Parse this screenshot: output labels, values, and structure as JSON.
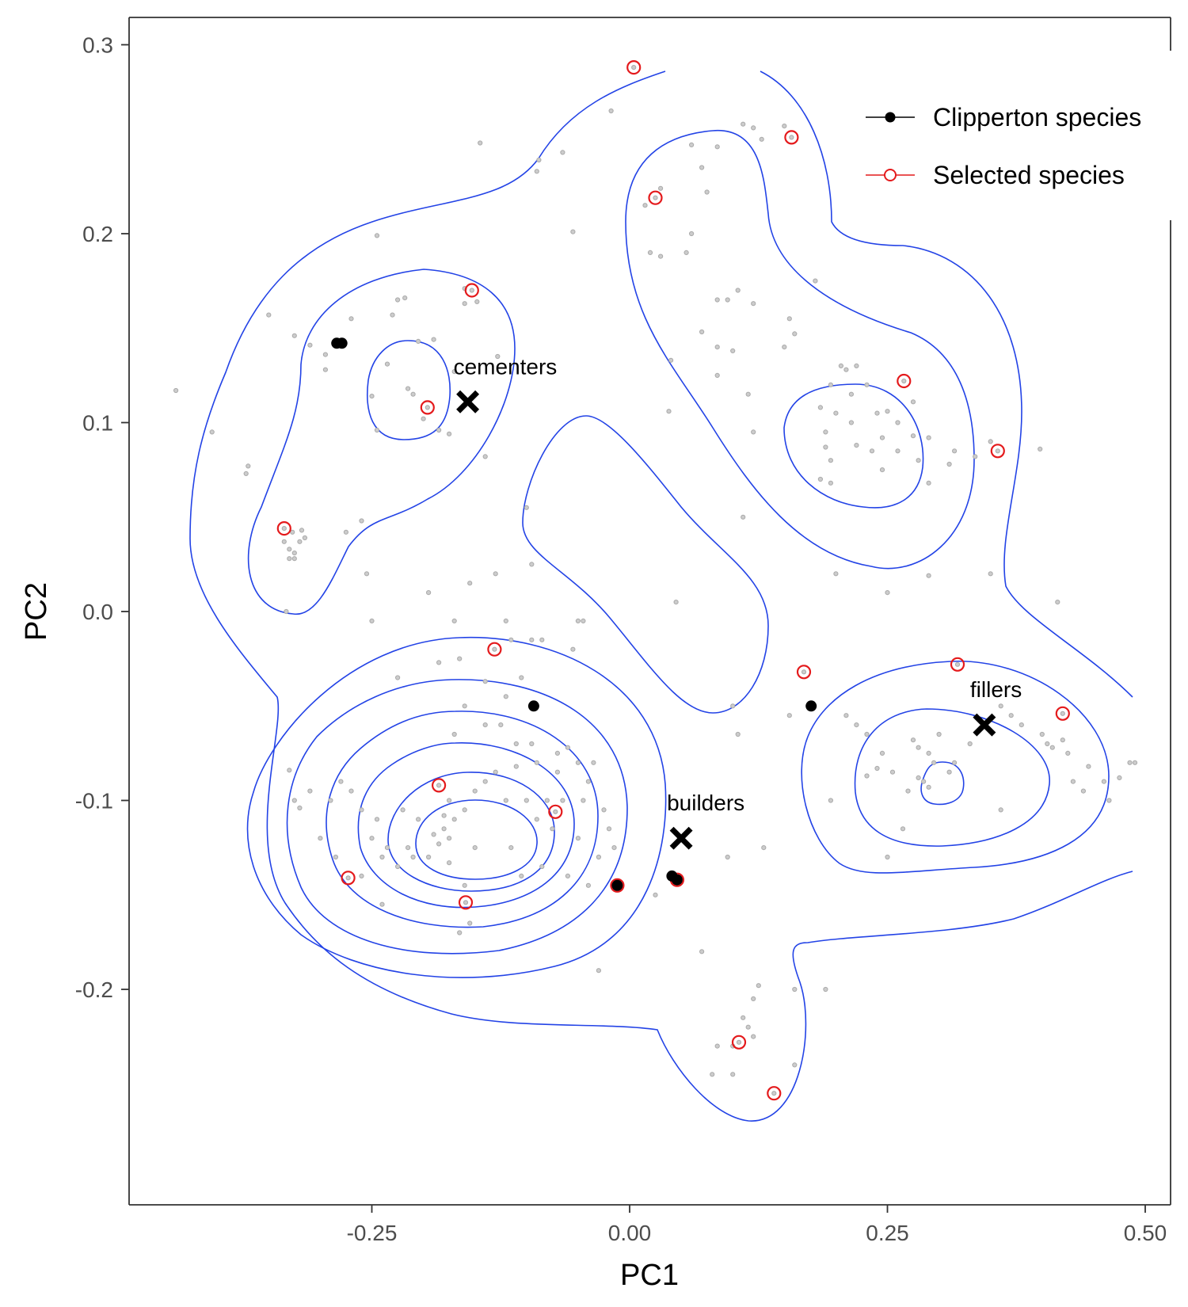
{
  "chart_data": {
    "type": "scatter",
    "title": "",
    "xlabel": "PC1",
    "ylabel": "PC2",
    "xlim": [
      -0.49,
      0.52
    ],
    "ylim": [
      -0.28,
      0.315
    ],
    "x_ticks": [
      {
        "value": -0.25,
        "label": "-0.25"
      },
      {
        "value": 0.0,
        "label": "0.00"
      },
      {
        "value": 0.25,
        "label": "0.25"
      },
      {
        "value": 0.5,
        "label": "0.50"
      }
    ],
    "y_ticks": [
      {
        "value": 0.3,
        "label": "0.3"
      },
      {
        "value": 0.2,
        "label": "0.2"
      },
      {
        "value": 0.1,
        "label": "0.1"
      },
      {
        "value": 0.0,
        "label": "0.0"
      },
      {
        "value": -0.1,
        "label": "-0.1"
      },
      {
        "value": -0.2,
        "label": "-0.2"
      }
    ],
    "grid": false,
    "legend_position": "top-right",
    "colors": {
      "background_points": "#aaaaaa",
      "clipperton": "#000000",
      "selected": "#e41a1c",
      "contour": "#2343e6"
    },
    "legend": [
      {
        "label": "Clipperton species",
        "marker": "filled-circle",
        "color": "#000000"
      },
      {
        "label": "Selected species",
        "marker": "open-circle",
        "color": "#e41a1c"
      }
    ],
    "centroids": [
      {
        "label": "cementers",
        "x": -0.157,
        "y": 0.111
      },
      {
        "label": "builders",
        "x": 0.05,
        "y": -0.12
      },
      {
        "label": "fillers",
        "x": 0.344,
        "y": -0.06
      }
    ],
    "clipperton_species": [
      {
        "x": -0.279,
        "y": 0.142
      },
      {
        "x": -0.284,
        "y": 0.142
      },
      {
        "x": -0.093,
        "y": -0.05
      },
      {
        "x": 0.176,
        "y": -0.05
      },
      {
        "x": -0.012,
        "y": -0.145
      },
      {
        "x": 0.041,
        "y": -0.14
      },
      {
        "x": 0.046,
        "y": -0.142
      }
    ],
    "selected_species": [
      {
        "x": 0.004,
        "y": 0.288
      },
      {
        "x": 0.157,
        "y": 0.251
      },
      {
        "x": 0.025,
        "y": 0.219
      },
      {
        "x": -0.153,
        "y": 0.17
      },
      {
        "x": -0.196,
        "y": 0.108
      },
      {
        "x": 0.266,
        "y": 0.122
      },
      {
        "x": 0.357,
        "y": 0.085
      },
      {
        "x": -0.335,
        "y": 0.044
      },
      {
        "x": -0.131,
        "y": -0.02
      },
      {
        "x": 0.169,
        "y": -0.032
      },
      {
        "x": 0.318,
        "y": -0.028
      },
      {
        "x": 0.42,
        "y": -0.054
      },
      {
        "x": -0.185,
        "y": -0.092
      },
      {
        "x": -0.072,
        "y": -0.106
      },
      {
        "x": -0.273,
        "y": -0.141
      },
      {
        "x": -0.159,
        "y": -0.154
      },
      {
        "x": -0.012,
        "y": -0.145
      },
      {
        "x": 0.046,
        "y": -0.142
      },
      {
        "x": 0.106,
        "y": -0.228
      },
      {
        "x": 0.14,
        "y": -0.255
      }
    ],
    "background_species": [
      {
        "x": -0.44,
        "y": 0.117
      },
      {
        "x": -0.405,
        "y": 0.095
      },
      {
        "x": -0.37,
        "y": 0.077
      },
      {
        "x": -0.372,
        "y": 0.073
      },
      {
        "x": -0.35,
        "y": 0.157
      },
      {
        "x": -0.325,
        "y": 0.146
      },
      {
        "x": -0.31,
        "y": 0.141
      },
      {
        "x": -0.295,
        "y": 0.136
      },
      {
        "x": -0.295,
        "y": 0.128
      },
      {
        "x": -0.27,
        "y": 0.155
      },
      {
        "x": -0.245,
        "y": 0.199
      },
      {
        "x": -0.225,
        "y": 0.165
      },
      {
        "x": -0.23,
        "y": 0.157
      },
      {
        "x": -0.218,
        "y": 0.166
      },
      {
        "x": -0.205,
        "y": 0.143
      },
      {
        "x": -0.19,
        "y": 0.144
      },
      {
        "x": -0.235,
        "y": 0.131
      },
      {
        "x": -0.25,
        "y": 0.114
      },
      {
        "x": -0.245,
        "y": 0.096
      },
      {
        "x": -0.215,
        "y": 0.118
      },
      {
        "x": -0.21,
        "y": 0.115
      },
      {
        "x": -0.2,
        "y": 0.102
      },
      {
        "x": -0.185,
        "y": 0.096
      },
      {
        "x": -0.175,
        "y": 0.094
      },
      {
        "x": -0.17,
        "y": 0.127
      },
      {
        "x": -0.16,
        "y": 0.163
      },
      {
        "x": -0.16,
        "y": 0.171
      },
      {
        "x": -0.148,
        "y": 0.164
      },
      {
        "x": -0.128,
        "y": 0.135
      },
      {
        "x": -0.145,
        "y": 0.248
      },
      {
        "x": -0.09,
        "y": 0.233
      },
      {
        "x": -0.088,
        "y": 0.239
      },
      {
        "x": -0.065,
        "y": 0.243
      },
      {
        "x": -0.055,
        "y": 0.201
      },
      {
        "x": -0.14,
        "y": 0.082
      },
      {
        "x": -0.018,
        "y": 0.265
      },
      {
        "x": -0.335,
        "y": 0.037
      },
      {
        "x": -0.33,
        "y": 0.033
      },
      {
        "x": -0.325,
        "y": 0.031
      },
      {
        "x": -0.32,
        "y": 0.037
      },
      {
        "x": -0.315,
        "y": 0.039
      },
      {
        "x": -0.318,
        "y": 0.043
      },
      {
        "x": -0.33,
        "y": 0.028
      },
      {
        "x": -0.325,
        "y": 0.028
      },
      {
        "x": -0.327,
        "y": 0.042
      },
      {
        "x": -0.275,
        "y": 0.042
      },
      {
        "x": -0.26,
        "y": 0.048
      },
      {
        "x": -0.255,
        "y": 0.02
      },
      {
        "x": -0.333,
        "y": 0.0
      },
      {
        "x": 0.015,
        "y": 0.215
      },
      {
        "x": 0.03,
        "y": 0.224
      },
      {
        "x": 0.02,
        "y": 0.19
      },
      {
        "x": 0.03,
        "y": 0.188
      },
      {
        "x": 0.06,
        "y": 0.247
      },
      {
        "x": 0.07,
        "y": 0.235
      },
      {
        "x": 0.085,
        "y": 0.246
      },
      {
        "x": 0.075,
        "y": 0.222
      },
      {
        "x": 0.06,
        "y": 0.2
      },
      {
        "x": 0.055,
        "y": 0.19
      },
      {
        "x": 0.11,
        "y": 0.258
      },
      {
        "x": 0.12,
        "y": 0.256
      },
      {
        "x": 0.128,
        "y": 0.25
      },
      {
        "x": 0.15,
        "y": 0.257
      },
      {
        "x": 0.085,
        "y": 0.165
      },
      {
        "x": 0.095,
        "y": 0.165
      },
      {
        "x": 0.105,
        "y": 0.17
      },
      {
        "x": 0.12,
        "y": 0.163
      },
      {
        "x": 0.16,
        "y": 0.147
      },
      {
        "x": 0.18,
        "y": 0.175
      },
      {
        "x": 0.085,
        "y": 0.14
      },
      {
        "x": 0.1,
        "y": 0.138
      },
      {
        "x": 0.085,
        "y": 0.125
      },
      {
        "x": 0.04,
        "y": 0.133
      },
      {
        "x": 0.038,
        "y": 0.106
      },
      {
        "x": 0.155,
        "y": 0.155
      },
      {
        "x": 0.115,
        "y": 0.115
      },
      {
        "x": 0.12,
        "y": 0.095
      },
      {
        "x": 0.07,
        "y": 0.148
      },
      {
        "x": 0.15,
        "y": 0.14
      },
      {
        "x": 0.21,
        "y": 0.128
      },
      {
        "x": 0.195,
        "y": 0.12
      },
      {
        "x": 0.22,
        "y": 0.13
      },
      {
        "x": 0.23,
        "y": 0.12
      },
      {
        "x": 0.185,
        "y": 0.108
      },
      {
        "x": 0.2,
        "y": 0.105
      },
      {
        "x": 0.215,
        "y": 0.1
      },
      {
        "x": 0.24,
        "y": 0.105
      },
      {
        "x": 0.25,
        "y": 0.106
      },
      {
        "x": 0.26,
        "y": 0.1
      },
      {
        "x": 0.245,
        "y": 0.092
      },
      {
        "x": 0.26,
        "y": 0.085
      },
      {
        "x": 0.275,
        "y": 0.093
      },
      {
        "x": 0.28,
        "y": 0.08
      },
      {
        "x": 0.29,
        "y": 0.092
      },
      {
        "x": 0.235,
        "y": 0.085
      },
      {
        "x": 0.22,
        "y": 0.088
      },
      {
        "x": 0.19,
        "y": 0.087
      },
      {
        "x": 0.195,
        "y": 0.08
      },
      {
        "x": 0.245,
        "y": 0.075
      },
      {
        "x": 0.29,
        "y": 0.068
      },
      {
        "x": 0.31,
        "y": 0.078
      },
      {
        "x": 0.315,
        "y": 0.085
      },
      {
        "x": 0.335,
        "y": 0.082
      },
      {
        "x": 0.35,
        "y": 0.09
      },
      {
        "x": 0.398,
        "y": 0.086
      },
      {
        "x": 0.195,
        "y": 0.068
      },
      {
        "x": 0.185,
        "y": 0.07
      },
      {
        "x": 0.19,
        "y": 0.095
      },
      {
        "x": 0.275,
        "y": 0.111
      },
      {
        "x": 0.205,
        "y": 0.13
      },
      {
        "x": 0.215,
        "y": 0.115
      },
      {
        "x": -0.12,
        "y": -0.005
      },
      {
        "x": -0.1,
        "y": 0.055
      },
      {
        "x": -0.095,
        "y": 0.025
      },
      {
        "x": -0.13,
        "y": 0.02
      },
      {
        "x": -0.155,
        "y": 0.015
      },
      {
        "x": -0.195,
        "y": 0.01
      },
      {
        "x": -0.25,
        "y": -0.005
      },
      {
        "x": 0.11,
        "y": 0.05
      },
      {
        "x": 0.045,
        "y": 0.005
      },
      {
        "x": 0.2,
        "y": 0.02
      },
      {
        "x": 0.25,
        "y": 0.01
      },
      {
        "x": 0.29,
        "y": 0.019
      },
      {
        "x": 0.35,
        "y": 0.02
      },
      {
        "x": 0.415,
        "y": 0.005
      },
      {
        "x": -0.17,
        "y": -0.005
      },
      {
        "x": -0.225,
        "y": -0.035
      },
      {
        "x": -0.185,
        "y": -0.027
      },
      {
        "x": -0.165,
        "y": -0.025
      },
      {
        "x": -0.115,
        "y": -0.015
      },
      {
        "x": -0.095,
        "y": -0.015
      },
      {
        "x": -0.085,
        "y": -0.015
      },
      {
        "x": -0.05,
        "y": -0.005
      },
      {
        "x": -0.045,
        "y": -0.005
      },
      {
        "x": -0.055,
        "y": -0.02
      },
      {
        "x": -0.105,
        "y": -0.035
      },
      {
        "x": -0.14,
        "y": -0.037
      },
      {
        "x": -0.16,
        "y": -0.05
      },
      {
        "x": -0.12,
        "y": -0.045
      },
      {
        "x": -0.17,
        "y": -0.065
      },
      {
        "x": -0.14,
        "y": -0.06
      },
      {
        "x": -0.125,
        "y": -0.06
      },
      {
        "x": -0.11,
        "y": -0.07
      },
      {
        "x": -0.095,
        "y": -0.07
      },
      {
        "x": -0.07,
        "y": -0.075
      },
      {
        "x": -0.06,
        "y": -0.072
      },
      {
        "x": -0.05,
        "y": -0.08
      },
      {
        "x": -0.035,
        "y": -0.08
      },
      {
        "x": -0.04,
        "y": -0.09
      },
      {
        "x": -0.045,
        "y": -0.1
      },
      {
        "x": -0.025,
        "y": -0.105
      },
      {
        "x": -0.02,
        "y": -0.115
      },
      {
        "x": -0.03,
        "y": -0.13
      },
      {
        "x": -0.015,
        "y": -0.125
      },
      {
        "x": -0.05,
        "y": -0.12
      },
      {
        "x": -0.09,
        "y": -0.08
      },
      {
        "x": -0.11,
        "y": -0.082
      },
      {
        "x": -0.13,
        "y": -0.085
      },
      {
        "x": -0.14,
        "y": -0.09
      },
      {
        "x": -0.15,
        "y": -0.095
      },
      {
        "x": -0.12,
        "y": -0.1
      },
      {
        "x": -0.1,
        "y": -0.1
      },
      {
        "x": -0.08,
        "y": -0.1
      },
      {
        "x": -0.07,
        "y": -0.085
      },
      {
        "x": -0.065,
        "y": -0.1
      },
      {
        "x": -0.16,
        "y": -0.105
      },
      {
        "x": -0.175,
        "y": -0.1
      },
      {
        "x": -0.18,
        "y": -0.108
      },
      {
        "x": -0.18,
        "y": -0.115
      },
      {
        "x": -0.175,
        "y": -0.12
      },
      {
        "x": -0.17,
        "y": -0.11
      },
      {
        "x": -0.19,
        "y": -0.118
      },
      {
        "x": -0.185,
        "y": -0.123
      },
      {
        "x": -0.175,
        "y": -0.133
      },
      {
        "x": -0.15,
        "y": -0.125
      },
      {
        "x": -0.115,
        "y": -0.125
      },
      {
        "x": -0.09,
        "y": -0.11
      },
      {
        "x": -0.075,
        "y": -0.115
      },
      {
        "x": -0.245,
        "y": -0.11
      },
      {
        "x": -0.25,
        "y": -0.12
      },
      {
        "x": -0.24,
        "y": -0.13
      },
      {
        "x": -0.235,
        "y": -0.125
      },
      {
        "x": -0.225,
        "y": -0.135
      },
      {
        "x": -0.215,
        "y": -0.125
      },
      {
        "x": -0.205,
        "y": -0.11
      },
      {
        "x": -0.22,
        "y": -0.105
      },
      {
        "x": -0.26,
        "y": -0.105
      },
      {
        "x": -0.27,
        "y": -0.095
      },
      {
        "x": -0.28,
        "y": -0.09
      },
      {
        "x": -0.29,
        "y": -0.1
      },
      {
        "x": -0.31,
        "y": -0.095
      },
      {
        "x": -0.3,
        "y": -0.12
      },
      {
        "x": -0.285,
        "y": -0.13
      },
      {
        "x": -0.26,
        "y": -0.14
      },
      {
        "x": -0.24,
        "y": -0.155
      },
      {
        "x": -0.21,
        "y": -0.13
      },
      {
        "x": -0.195,
        "y": -0.13
      },
      {
        "x": -0.16,
        "y": -0.145
      },
      {
        "x": -0.155,
        "y": -0.165
      },
      {
        "x": -0.165,
        "y": -0.17
      },
      {
        "x": -0.105,
        "y": -0.14
      },
      {
        "x": -0.085,
        "y": -0.135
      },
      {
        "x": -0.06,
        "y": -0.14
      },
      {
        "x": -0.04,
        "y": -0.145
      },
      {
        "x": -0.03,
        "y": -0.19
      },
      {
        "x": -0.33,
        "y": -0.084
      },
      {
        "x": -0.325,
        "y": -0.1
      },
      {
        "x": -0.32,
        "y": -0.104
      },
      {
        "x": 0.025,
        "y": -0.15
      },
      {
        "x": 0.07,
        "y": -0.18
      },
      {
        "x": 0.095,
        "y": -0.13
      },
      {
        "x": 0.13,
        "y": -0.125
      },
      {
        "x": 0.1,
        "y": -0.05
      },
      {
        "x": 0.105,
        "y": -0.065
      },
      {
        "x": 0.155,
        "y": -0.055
      },
      {
        "x": 0.21,
        "y": -0.055
      },
      {
        "x": 0.22,
        "y": -0.06
      },
      {
        "x": 0.23,
        "y": -0.065
      },
      {
        "x": 0.245,
        "y": -0.075
      },
      {
        "x": 0.24,
        "y": -0.083
      },
      {
        "x": 0.255,
        "y": -0.085
      },
      {
        "x": 0.275,
        "y": -0.068
      },
      {
        "x": 0.28,
        "y": -0.072
      },
      {
        "x": 0.29,
        "y": -0.075
      },
      {
        "x": 0.3,
        "y": -0.065
      },
      {
        "x": 0.295,
        "y": -0.08
      },
      {
        "x": 0.28,
        "y": -0.088
      },
      {
        "x": 0.285,
        "y": -0.09
      },
      {
        "x": 0.29,
        "y": -0.093
      },
      {
        "x": 0.27,
        "y": -0.095
      },
      {
        "x": 0.31,
        "y": -0.085
      },
      {
        "x": 0.33,
        "y": -0.07
      },
      {
        "x": 0.36,
        "y": -0.05
      },
      {
        "x": 0.37,
        "y": -0.055
      },
      {
        "x": 0.38,
        "y": -0.06
      },
      {
        "x": 0.4,
        "y": -0.065
      },
      {
        "x": 0.405,
        "y": -0.07
      },
      {
        "x": 0.41,
        "y": -0.072
      },
      {
        "x": 0.42,
        "y": -0.068
      },
      {
        "x": 0.425,
        "y": -0.075
      },
      {
        "x": 0.43,
        "y": -0.09
      },
      {
        "x": 0.445,
        "y": -0.082
      },
      {
        "x": 0.46,
        "y": -0.09
      },
      {
        "x": 0.475,
        "y": -0.088
      },
      {
        "x": 0.485,
        "y": -0.08
      },
      {
        "x": 0.49,
        "y": -0.08
      },
      {
        "x": 0.465,
        "y": -0.1
      },
      {
        "x": 0.44,
        "y": -0.095
      },
      {
        "x": 0.265,
        "y": -0.115
      },
      {
        "x": 0.25,
        "y": -0.13
      },
      {
        "x": 0.195,
        "y": -0.1
      },
      {
        "x": 0.36,
        "y": -0.105
      },
      {
        "x": 0.315,
        "y": -0.08
      },
      {
        "x": 0.23,
        "y": -0.087
      },
      {
        "x": 0.1,
        "y": -0.23
      },
      {
        "x": 0.11,
        "y": -0.215
      },
      {
        "x": 0.115,
        "y": -0.22
      },
      {
        "x": 0.12,
        "y": -0.205
      },
      {
        "x": 0.125,
        "y": -0.198
      },
      {
        "x": 0.1,
        "y": -0.245
      },
      {
        "x": 0.16,
        "y": -0.2
      },
      {
        "x": 0.19,
        "y": -0.2
      },
      {
        "x": 0.16,
        "y": -0.24
      },
      {
        "x": 0.085,
        "y": -0.23
      },
      {
        "x": 0.08,
        "y": -0.245
      },
      {
        "x": 0.12,
        "y": -0.225
      }
    ]
  }
}
